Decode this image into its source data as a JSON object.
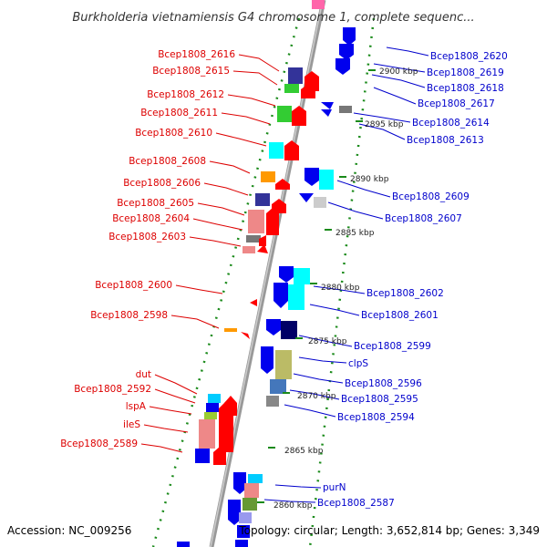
{
  "title": "Burkholderia vietnamiensis G4 chromosome 1, complete sequenc...",
  "footer": {
    "accession": "Accession: NC_009256",
    "topology": "Topology: circular; Length: 3,652,814 bp; Genes: 3,349"
  },
  "colors": {
    "backbone": "#999999",
    "ticks": "#1a8a1a",
    "minus_strand_labels": "#dd0000",
    "plus_strand_labels": "#0000cc"
  },
  "scale_ticks": [
    "2900 kbp",
    "2895 kbp",
    "2890 kbp",
    "2885 kbp",
    "2880 kbp",
    "2875 kbp",
    "2870 kbp",
    "2865 kbp",
    "2860 kbp"
  ],
  "left_labels": [
    "Bcep1808_2616",
    "Bcep1808_2615",
    "Bcep1808_2612",
    "Bcep1808_2611",
    "Bcep1808_2610",
    "Bcep1808_2608",
    "Bcep1808_2606",
    "Bcep1808_2605",
    "Bcep1808_2604",
    "Bcep1808_2603",
    "Bcep1808_2600",
    "Bcep1808_2598",
    "dut",
    "Bcep1808_2592",
    "lspA",
    "ileS",
    "Bcep1808_2589"
  ],
  "right_labels": [
    "Bcep1808_2620",
    "Bcep1808_2619",
    "Bcep1808_2618",
    "Bcep1808_2617",
    "Bcep1808_2614",
    "Bcep1808_2613",
    "Bcep1808_2609",
    "Bcep1808_2607",
    "Bcep1808_2602",
    "Bcep1808_2601",
    "Bcep1808_2599",
    "clpS",
    "Bcep1808_2596",
    "Bcep1808_2595",
    "Bcep1808_2594",
    "purN",
    "Bcep1808_2587"
  ]
}
